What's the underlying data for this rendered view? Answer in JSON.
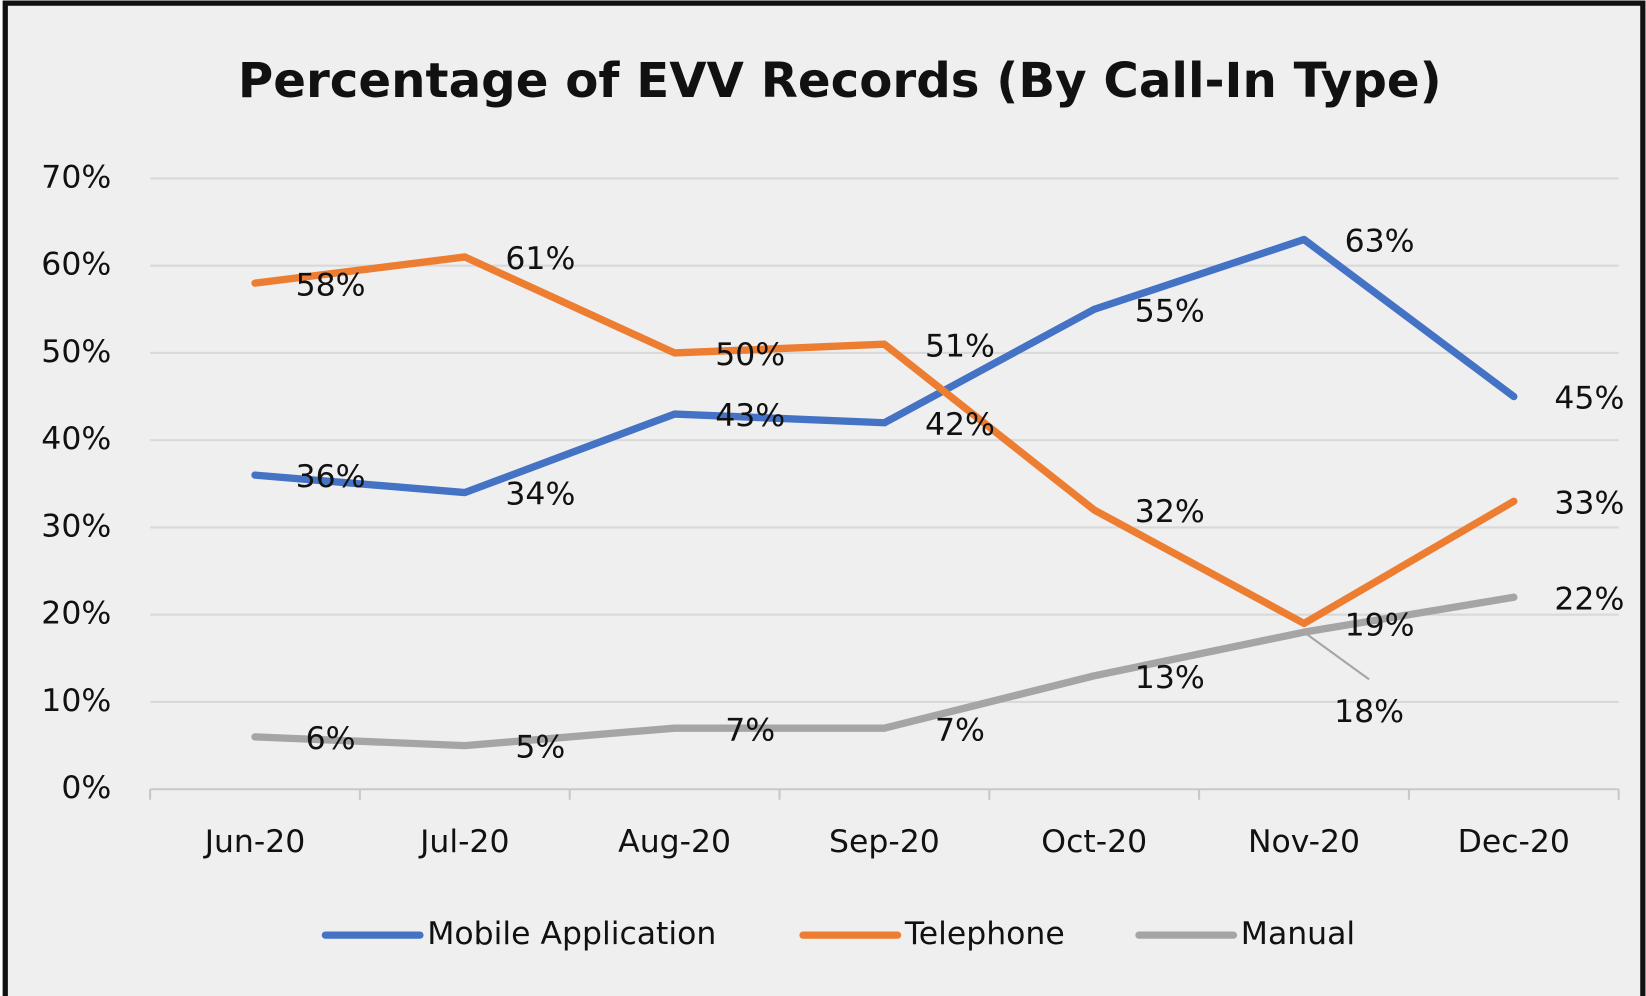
{
  "chart_data": {
    "type": "line",
    "title": "Percentage of EVV Records (By Call-In Type)",
    "categories": [
      "Jun-20",
      "Jul-20",
      "Aug-20",
      "Sep-20",
      "Oct-20",
      "Nov-20",
      "Dec-20"
    ],
    "series": [
      {
        "name": "Mobile Application",
        "color": "#4472c4",
        "values": [
          36,
          34,
          43,
          42,
          55,
          63,
          45
        ],
        "value_labels": [
          "36%",
          "34%",
          "43%",
          "42%",
          "55%",
          "63%",
          "45%"
        ]
      },
      {
        "name": "Telephone",
        "color": "#ed7d31",
        "values": [
          58,
          61,
          50,
          51,
          32,
          19,
          33
        ],
        "value_labels": [
          "58%",
          "61%",
          "50%",
          "51%",
          "32%",
          "19%",
          "33%"
        ]
      },
      {
        "name": "Manual",
        "color": "#a5a5a5",
        "values": [
          6,
          5,
          7,
          7,
          13,
          18,
          22
        ],
        "value_labels": [
          "6%",
          "5%",
          "7%",
          "7%",
          "13%",
          "18%",
          "22%"
        ]
      }
    ],
    "ylim": [
      0,
      70
    ],
    "yticks": [
      {
        "value": 0,
        "label": "0%"
      },
      {
        "value": 10,
        "label": "10%"
      },
      {
        "value": 20,
        "label": "20%"
      },
      {
        "value": 30,
        "label": "30%"
      },
      {
        "value": 40,
        "label": "40%"
      },
      {
        "value": 50,
        "label": "50%"
      },
      {
        "value": 60,
        "label": "60%"
      },
      {
        "value": 70,
        "label": "70%"
      }
    ],
    "grid": true,
    "legend": "bottom"
  }
}
